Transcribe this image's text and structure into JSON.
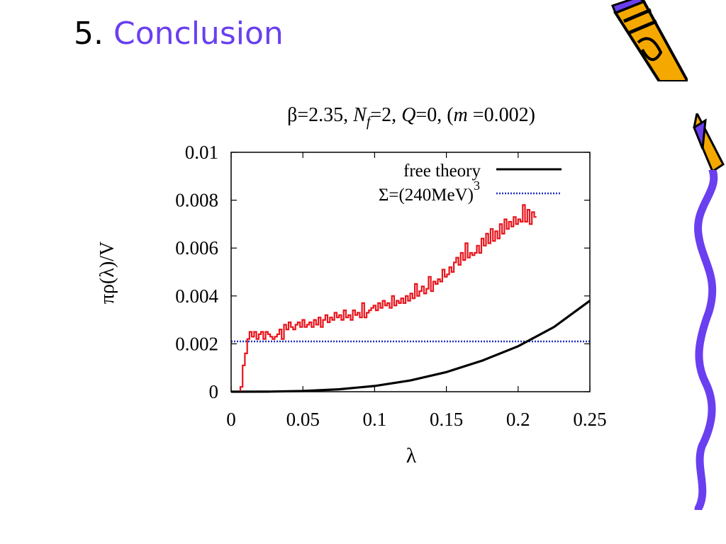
{
  "slide": {
    "number": "5.",
    "title": "Conclusion"
  },
  "colors": {
    "title_accent": "#6a3ff0",
    "histogram": "#e8141c",
    "free_theory": "#000000",
    "sigma_line": "#1f2fbf",
    "decoration_purple": "#6a3ff0",
    "decoration_orange": "#f5a800"
  },
  "chart_data": {
    "type": "line",
    "title": {
      "beta": "β=2.35, ",
      "nf_n": "N",
      "nf_sub": "f",
      "nf_rest": "=2, ",
      "q_q": "Q",
      "q_rest": "=0, (",
      "m_m": "m",
      "m_rest": " =0.002)"
    },
    "xlabel": "λ",
    "ylabel": "πρ(λ)/V",
    "xlim": [
      0,
      0.25
    ],
    "ylim": [
      0,
      0.01
    ],
    "x_ticks": [
      "0",
      "0.05",
      "0.1",
      "0.15",
      "0.2",
      "0.25"
    ],
    "y_ticks": [
      "0",
      "0.002",
      "0.004",
      "0.006",
      "0.008",
      "0.01"
    ],
    "legend_position": "top-right",
    "legend": [
      {
        "label": "free theory",
        "style": "solid"
      },
      {
        "label": "Σ=(240MeV)",
        "sup": "3",
        "style": "dotted"
      }
    ],
    "series": [
      {
        "name": "histogram",
        "style": "step",
        "bin_width": 0.0016,
        "x_start": 0.0064,
        "values": [
          0.0002,
          0.0011,
          0.0016,
          0.0022,
          0.0025,
          0.0023,
          0.0025,
          0.0022,
          0.0024,
          0.0025,
          0.0022,
          0.0025,
          0.0024,
          0.0023,
          0.0022,
          0.0023,
          0.0024,
          0.0026,
          0.0022,
          0.0028,
          0.0026,
          0.0029,
          0.0027,
          0.0026,
          0.0028,
          0.0029,
          0.0027,
          0.003,
          0.0027,
          0.0028,
          0.0029,
          0.0027,
          0.003,
          0.0028,
          0.0031,
          0.0027,
          0.003,
          0.0032,
          0.0029,
          0.0031,
          0.003,
          0.0033,
          0.0031,
          0.0032,
          0.003,
          0.0034,
          0.0031,
          0.0032,
          0.003,
          0.0034,
          0.0032,
          0.0033,
          0.0031,
          0.0037,
          0.0031,
          0.0033,
          0.0034,
          0.0035,
          0.0036,
          0.0034,
          0.0037,
          0.0035,
          0.0038,
          0.0036,
          0.0037,
          0.0035,
          0.004,
          0.0036,
          0.0038,
          0.0037,
          0.0039,
          0.0037,
          0.004,
          0.0038,
          0.0041,
          0.0039,
          0.0045,
          0.004,
          0.0042,
          0.0044,
          0.0041,
          0.0043,
          0.0048,
          0.0042,
          0.0046,
          0.0045,
          0.0047,
          0.0046,
          0.0051,
          0.0048,
          0.0049,
          0.0052,
          0.005,
          0.0054,
          0.0056,
          0.0053,
          0.0058,
          0.0055,
          0.0062,
          0.0056,
          0.0058,
          0.0057,
          0.0058,
          0.0061,
          0.0058,
          0.0064,
          0.0061,
          0.0066,
          0.0062,
          0.0068,
          0.0063,
          0.0067,
          0.0064,
          0.007,
          0.0066,
          0.0072,
          0.0068,
          0.0071,
          0.0069,
          0.0073,
          0.007,
          0.0072,
          0.0071,
          0.0078,
          0.0071,
          0.0076,
          0.007,
          0.0075,
          0.0073
        ]
      },
      {
        "name": "free theory",
        "style": "solid",
        "x": [
          0,
          0.025,
          0.05,
          0.075,
          0.1,
          0.125,
          0.15,
          0.175,
          0.2,
          0.225,
          0.25
        ],
        "values": [
          0,
          4e-06,
          3e-05,
          0.0001,
          0.00024,
          0.00047,
          0.00082,
          0.0013,
          0.0019,
          0.0027,
          0.0038
        ]
      },
      {
        "name": "Σ=(240MeV)3",
        "style": "dotted",
        "x": [
          0,
          0.25
        ],
        "values": [
          0.0021,
          0.0021
        ]
      }
    ]
  }
}
